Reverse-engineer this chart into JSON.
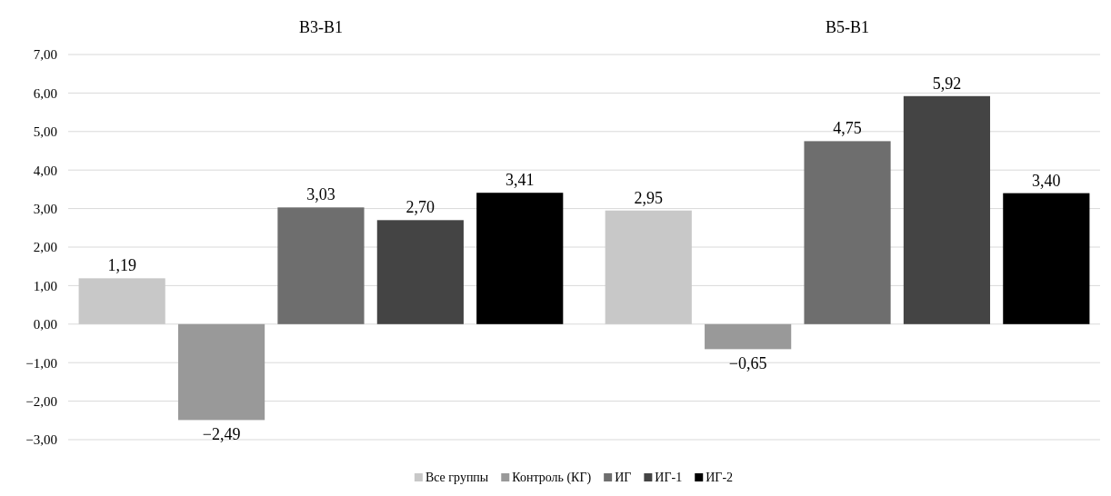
{
  "chart_data": {
    "type": "bar",
    "categories": [
      "B3-B1",
      "B5-B1"
    ],
    "series": [
      {
        "name": "Все группы",
        "color": "#c8c8c8",
        "values": [
          1.19,
          2.95
        ],
        "value_labels": [
          "1,19",
          "2,95"
        ]
      },
      {
        "name": "Контроль (КГ)",
        "color": "#999999",
        "values": [
          -2.49,
          -0.65
        ],
        "value_labels": [
          "−2,49",
          "−0,65"
        ]
      },
      {
        "name": "ИГ",
        "color": "#6e6e6e",
        "values": [
          3.03,
          4.75
        ],
        "value_labels": [
          "3,03",
          "4,75"
        ]
      },
      {
        "name": "ИГ-1",
        "color": "#444444",
        "values": [
          2.7,
          5.92
        ],
        "value_labels": [
          "2,70",
          "5,92"
        ]
      },
      {
        "name": "ИГ-2",
        "color": "#000000",
        "values": [
          3.41,
          3.4
        ],
        "value_labels": [
          "3,41",
          "3,40"
        ]
      }
    ],
    "ylim": [
      -3,
      7
    ],
    "yticks": [
      {
        "value": -3,
        "label": "−3,00"
      },
      {
        "value": -2,
        "label": "−2,00"
      },
      {
        "value": -1,
        "label": "−1,00"
      },
      {
        "value": 0,
        "label": "0,00"
      },
      {
        "value": 1,
        "label": "1,00"
      },
      {
        "value": 2,
        "label": "2,00"
      },
      {
        "value": 3,
        "label": "3,00"
      },
      {
        "value": 4,
        "label": "4,00"
      },
      {
        "value": 5,
        "label": "5,00"
      },
      {
        "value": 6,
        "label": "6,00"
      },
      {
        "value": 7,
        "label": "7,00"
      }
    ],
    "grid": "y",
    "legend": "bottom"
  }
}
